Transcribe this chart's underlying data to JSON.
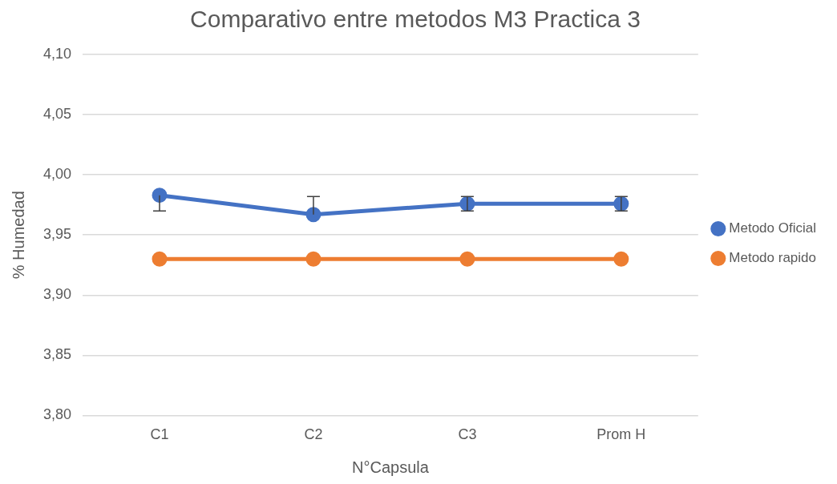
{
  "chart_data": {
    "type": "line",
    "title": "Comparativo entre metodos M3 Practica 3",
    "xlabel": "N°Capsula",
    "ylabel": "% Humedad",
    "categories": [
      "C1",
      "C2",
      "C3",
      "Prom H"
    ],
    "series": [
      {
        "name": "Metodo Oficial",
        "color": "#4472c4",
        "values": [
          3.983,
          3.967,
          3.976,
          3.976
        ],
        "errors": [
          [
            3.97,
            3.983
          ],
          [
            3.967,
            3.982
          ],
          [
            3.97,
            3.982
          ],
          [
            3.97,
            3.982
          ]
        ]
      },
      {
        "name": "Metodo rapido",
        "color": "#ed7d31",
        "values": [
          3.93,
          3.93,
          3.93,
          3.93
        ]
      }
    ],
    "ylim": [
      3.8,
      4.1
    ],
    "yticks": [
      {
        "value": 3.8,
        "label": "3,80"
      },
      {
        "value": 3.85,
        "label": "3,85"
      },
      {
        "value": 3.9,
        "label": "3,90"
      },
      {
        "value": 3.95,
        "label": "3,95"
      },
      {
        "value": 4.0,
        "label": "4,00"
      },
      {
        "value": 4.05,
        "label": "4,05"
      },
      {
        "value": 4.1,
        "label": "4,10"
      }
    ],
    "grid": "y",
    "legend": "right",
    "marker": "circle",
    "line_style": "solid"
  }
}
